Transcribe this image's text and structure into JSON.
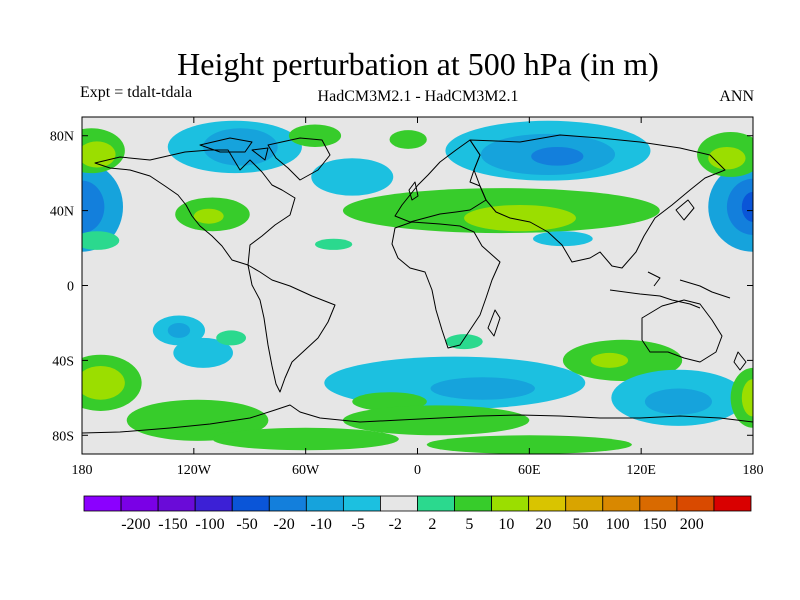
{
  "title": "Height perturbation at 500 hPa (in m)",
  "subtitle_left": "Expt = tdalt-tdala",
  "subtitle_center": "HadCM3M2.1 - HadCM3M2.1",
  "subtitle_right": "ANN",
  "map": {
    "projection": "cylindrical equidistant",
    "lon_range": [
      -180,
      180
    ],
    "lat_range": [
      -90,
      90
    ],
    "background_color": "#e6e6e6",
    "x_ticks": [
      {
        "lon": -180,
        "label": "180"
      },
      {
        "lon": -120,
        "label": "120W"
      },
      {
        "lon": -60,
        "label": "60W"
      },
      {
        "lon": 0,
        "label": "0"
      },
      {
        "lon": 60,
        "label": "60E"
      },
      {
        "lon": 120,
        "label": "120E"
      },
      {
        "lon": 180,
        "label": "180"
      }
    ],
    "y_ticks": [
      {
        "lat": 80,
        "label": "80N"
      },
      {
        "lat": 40,
        "label": "40N"
      },
      {
        "lat": 0,
        "label": "0"
      },
      {
        "lat": -40,
        "label": "40S"
      },
      {
        "lat": -80,
        "label": "80S"
      }
    ]
  },
  "colorbar": {
    "colors": [
      "#8b00ff",
      "#7a00e6",
      "#6a0bd8",
      "#3c20d6",
      "#0a55d8",
      "#137fdc",
      "#16a3dc",
      "#1cc0e0",
      "#e6e6e6",
      "#2bd98e",
      "#37cc2b",
      "#9bde00",
      "#d9c400",
      "#d9a400",
      "#d98800",
      "#d96a00",
      "#d94a00",
      "#d90000"
    ],
    "labels": [
      "-200",
      "-150",
      "-100",
      "-50",
      "-20",
      "-10",
      "-5",
      "-2",
      "2",
      "5",
      "10",
      "20",
      "50",
      "100",
      "150",
      "200"
    ]
  },
  "field_blobs": [
    {
      "lon": -180,
      "lat": 42,
      "rlon": 22,
      "rlat": 24,
      "level": -5
    },
    {
      "lon": -180,
      "lat": 42,
      "rlon": 12,
      "rlat": 14,
      "level": -10
    },
    {
      "lon": 180,
      "lat": 42,
      "rlon": 24,
      "rlat": 24,
      "level": -5
    },
    {
      "lon": 180,
      "lat": 42,
      "rlon": 14,
      "rlat": 15,
      "level": -10
    },
    {
      "lon": 180,
      "lat": 42,
      "rlon": 6,
      "rlat": 8,
      "level": -20
    },
    {
      "lon": -175,
      "lat": 72,
      "rlon": 18,
      "rlat": 12,
      "level": 5
    },
    {
      "lon": -172,
      "lat": 70,
      "rlon": 10,
      "rlat": 7,
      "level": 10
    },
    {
      "lon": -172,
      "lat": 24,
      "rlon": 12,
      "rlat": 5,
      "level": 2
    },
    {
      "lon": 168,
      "lat": 70,
      "rlon": 18,
      "rlat": 12,
      "level": 5
    },
    {
      "lon": 166,
      "lat": 68,
      "rlon": 10,
      "rlat": 6,
      "level": 10
    },
    {
      "lon": -98,
      "lat": 74,
      "rlon": 36,
      "rlat": 14,
      "level": -2
    },
    {
      "lon": -95,
      "lat": 74,
      "rlon": 20,
      "rlat": 10,
      "level": -5
    },
    {
      "lon": -35,
      "lat": 58,
      "rlon": 22,
      "rlat": 10,
      "level": -2
    },
    {
      "lon": -110,
      "lat": 38,
      "rlon": 20,
      "rlat": 9,
      "level": 5
    },
    {
      "lon": -112,
      "lat": 37,
      "rlon": 8,
      "rlat": 4,
      "level": 10
    },
    {
      "lon": -55,
      "lat": 80,
      "rlon": 14,
      "rlat": 6,
      "level": 5
    },
    {
      "lon": -5,
      "lat": 78,
      "rlon": 10,
      "rlat": 5,
      "level": 5
    },
    {
      "lon": -45,
      "lat": 22,
      "rlon": 10,
      "rlat": 3,
      "level": 2
    },
    {
      "lon": 70,
      "lat": 72,
      "rlon": 55,
      "rlat": 16,
      "level": -2
    },
    {
      "lon": 70,
      "lat": 70,
      "rlon": 36,
      "rlat": 11,
      "level": -5
    },
    {
      "lon": 75,
      "lat": 69,
      "rlon": 14,
      "rlat": 5,
      "level": -10
    },
    {
      "lon": 45,
      "lat": 40,
      "rlon": 85,
      "rlat": 12,
      "level": 5
    },
    {
      "lon": 55,
      "lat": 36,
      "rlon": 30,
      "rlat": 7,
      "level": 10
    },
    {
      "lon": 78,
      "lat": 25,
      "rlon": 16,
      "rlat": 4,
      "level": -2
    },
    {
      "lon": -170,
      "lat": -52,
      "rlon": 22,
      "rlat": 15,
      "level": 5
    },
    {
      "lon": -170,
      "lat": -52,
      "rlon": 13,
      "rlat": 9,
      "level": 10
    },
    {
      "lon": -128,
      "lat": -24,
      "rlon": 14,
      "rlat": 8,
      "level": -2
    },
    {
      "lon": -128,
      "lat": -24,
      "rlon": 6,
      "rlat": 4,
      "level": -5
    },
    {
      "lon": -115,
      "lat": -36,
      "rlon": 16,
      "rlat": 8,
      "level": -2
    },
    {
      "lon": -100,
      "lat": -28,
      "rlon": 8,
      "rlat": 4,
      "level": 2
    },
    {
      "lon": -118,
      "lat": -72,
      "rlon": 38,
      "rlat": 11,
      "level": 5
    },
    {
      "lon": 20,
      "lat": -52,
      "rlon": 70,
      "rlat": 14,
      "level": -2
    },
    {
      "lon": 35,
      "lat": -55,
      "rlon": 28,
      "rlat": 6,
      "level": -5
    },
    {
      "lon": 25,
      "lat": -30,
      "rlon": 10,
      "rlat": 4,
      "level": 2
    },
    {
      "lon": -15,
      "lat": -62,
      "rlon": 20,
      "rlat": 5,
      "level": 5
    },
    {
      "lon": 110,
      "lat": -40,
      "rlon": 32,
      "rlat": 11,
      "level": 5
    },
    {
      "lon": 103,
      "lat": -40,
      "rlon": 10,
      "rlat": 4,
      "level": 10
    },
    {
      "lon": 140,
      "lat": -60,
      "rlon": 36,
      "rlat": 15,
      "level": -2
    },
    {
      "lon": 140,
      "lat": -62,
      "rlon": 18,
      "rlat": 7,
      "level": -5
    },
    {
      "lon": 180,
      "lat": -60,
      "rlon": 12,
      "rlat": 16,
      "level": 5
    },
    {
      "lon": 180,
      "lat": -60,
      "rlon": 6,
      "rlat": 10,
      "level": 10
    },
    {
      "lon": 10,
      "lat": -72,
      "rlon": 50,
      "rlat": 8,
      "level": 5
    },
    {
      "lon": -60,
      "lat": -82,
      "rlon": 50,
      "rlat": 6,
      "level": 5
    },
    {
      "lon": 60,
      "lat": -85,
      "rlon": 55,
      "rlat": 5,
      "level": 5
    }
  ]
}
